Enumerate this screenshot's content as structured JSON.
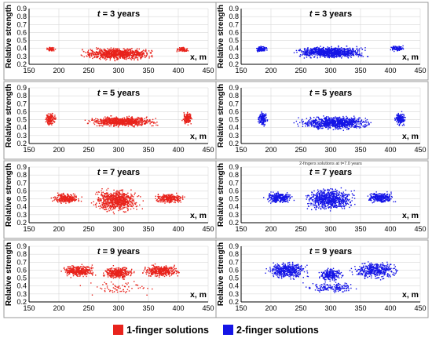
{
  "legend": {
    "one_finger": {
      "label": "1-finger solutions",
      "color": "#e8231c"
    },
    "two_finger": {
      "label": "2-finger solutions",
      "color": "#1515e6"
    }
  },
  "chart_data": [
    {
      "type": "scatter",
      "title_var": "t",
      "title_rest": " = 3 years",
      "ylabel": "Relative strength",
      "xlabel": "x, m",
      "xlim": [
        150,
        450
      ],
      "ylim": [
        0.2,
        0.9
      ],
      "x_ticks": [
        150,
        200,
        250,
        300,
        350,
        400,
        450
      ],
      "y_ticks": [
        0.2,
        0.3,
        0.4,
        0.5,
        0.6,
        0.7,
        0.8,
        0.9
      ],
      "grid": true,
      "series_color": "#e8231c",
      "legend_series": "1-finger solutions",
      "clusters": [
        {
          "x_range": [
            178,
            195
          ],
          "y_range": [
            0.36,
            0.42
          ],
          "n": 80
        },
        {
          "x_range": [
            228,
            368
          ],
          "y_range": [
            0.24,
            0.42
          ],
          "n": 900
        },
        {
          "x_range": [
            395,
            420
          ],
          "y_range": [
            0.35,
            0.42
          ],
          "n": 90
        }
      ]
    },
    {
      "type": "scatter",
      "title_var": "t",
      "title_rest": " = 3 years",
      "ylabel": "Relative strength",
      "xlabel": "x, m",
      "xlim": [
        150,
        450
      ],
      "ylim": [
        0.2,
        0.9
      ],
      "x_ticks": [
        150,
        200,
        250,
        300,
        350,
        400,
        450
      ],
      "y_ticks": [
        0.2,
        0.3,
        0.4,
        0.5,
        0.6,
        0.7,
        0.8,
        0.9
      ],
      "grid": true,
      "series_color": "#1515e6",
      "legend_series": "2-finger solutions",
      "clusters": [
        {
          "x_range": [
            172,
            195
          ],
          "y_range": [
            0.35,
            0.44
          ],
          "n": 110
        },
        {
          "x_range": [
            230,
            370
          ],
          "y_range": [
            0.26,
            0.44
          ],
          "n": 950
        },
        {
          "x_range": [
            398,
            425
          ],
          "y_range": [
            0.36,
            0.44
          ],
          "n": 110
        }
      ]
    },
    {
      "type": "scatter",
      "title_var": "t",
      "title_rest": " = 5 years",
      "ylabel": "Relative strength",
      "xlabel": "x, m",
      "xlim": [
        150,
        450
      ],
      "ylim": [
        0.2,
        0.9
      ],
      "x_ticks": [
        150,
        200,
        250,
        300,
        350,
        400,
        450
      ],
      "y_ticks": [
        0.2,
        0.3,
        0.4,
        0.5,
        0.6,
        0.7,
        0.8,
        0.9
      ],
      "grid": true,
      "series_color": "#e8231c",
      "legend_series": "1-finger solutions",
      "clusters": [
        {
          "x_range": [
            176,
            196
          ],
          "y_range": [
            0.4,
            0.61
          ],
          "n": 150
        },
        {
          "x_range": [
            238,
            378
          ],
          "y_range": [
            0.4,
            0.55
          ],
          "n": 800
        },
        {
          "x_range": [
            405,
            425
          ],
          "y_range": [
            0.42,
            0.61
          ],
          "n": 140
        }
      ]
    },
    {
      "type": "scatter",
      "title_var": "t",
      "title_rest": " = 5 years",
      "ylabel": "Relative strength",
      "xlabel": "x, m",
      "xlim": [
        150,
        450
      ],
      "ylim": [
        0.2,
        0.9
      ],
      "x_ticks": [
        150,
        200,
        250,
        300,
        350,
        400,
        450
      ],
      "y_ticks": [
        0.2,
        0.3,
        0.4,
        0.5,
        0.6,
        0.7,
        0.8,
        0.9
      ],
      "grid": true,
      "series_color": "#1515e6",
      "legend_series": "2-finger solutions",
      "clusters": [
        {
          "x_range": [
            176,
            196
          ],
          "y_range": [
            0.4,
            0.62
          ],
          "n": 160
        },
        {
          "x_range": [
            235,
            380
          ],
          "y_range": [
            0.36,
            0.56
          ],
          "n": 900
        },
        {
          "x_range": [
            405,
            428
          ],
          "y_range": [
            0.4,
            0.62
          ],
          "n": 160
        }
      ]
    },
    {
      "type": "scatter",
      "title_var": "t",
      "title_rest": " = 7 years",
      "ylabel": "Relative strength",
      "xlabel": "x, m",
      "xlim": [
        150,
        450
      ],
      "ylim": [
        0.2,
        0.9
      ],
      "x_ticks": [
        150,
        200,
        250,
        300,
        350,
        400,
        450
      ],
      "y_ticks": [
        0.2,
        0.3,
        0.4,
        0.5,
        0.6,
        0.7,
        0.8,
        0.9
      ],
      "grid": true,
      "series_color": "#e8231c",
      "legend_series": "1-finger solutions",
      "clusters": [
        {
          "x_range": [
            185,
            240
          ],
          "y_range": [
            0.43,
            0.58
          ],
          "n": 260
        },
        {
          "x_range": [
            250,
            345
          ],
          "y_range": [
            0.3,
            0.65
          ],
          "n": 700
        },
        {
          "x_range": [
            355,
            415
          ],
          "y_range": [
            0.43,
            0.58
          ],
          "n": 260
        }
      ]
    },
    {
      "type": "scatter",
      "title_var": "t",
      "title_rest": " = 7 years",
      "ylabel": "Relative strength",
      "xlabel": "x, m",
      "xlim": [
        150,
        450
      ],
      "ylim": [
        0.2,
        0.9
      ],
      "x_ticks": [
        150,
        200,
        250,
        300,
        350,
        400,
        450
      ],
      "y_ticks": [
        0.2,
        0.3,
        0.4,
        0.5,
        0.6,
        0.7,
        0.8,
        0.9
      ],
      "grid": true,
      "series_color": "#1515e6",
      "legend_series": "2-finger solutions",
      "subtitle": "2-fingers solutions at t=7.0 years",
      "clusters": [
        {
          "x_range": [
            185,
            242
          ],
          "y_range": [
            0.43,
            0.6
          ],
          "n": 280
        },
        {
          "x_range": [
            250,
            348
          ],
          "y_range": [
            0.33,
            0.66
          ],
          "n": 720
        },
        {
          "x_range": [
            355,
            412
          ],
          "y_range": [
            0.43,
            0.6
          ],
          "n": 280
        }
      ]
    },
    {
      "type": "scatter",
      "title_var": "t",
      "title_rest": " = 9 years",
      "ylabel": "Relative strength",
      "xlabel": "x, m",
      "xlim": [
        150,
        450
      ],
      "ylim": [
        0.2,
        0.9
      ],
      "x_ticks": [
        150,
        200,
        250,
        300,
        350,
        400,
        450
      ],
      "y_ticks": [
        0.2,
        0.3,
        0.4,
        0.5,
        0.6,
        0.7,
        0.8,
        0.9
      ],
      "grid": true,
      "series_color": "#e8231c",
      "legend_series": "1-finger solutions",
      "clusters": [
        {
          "x_range": [
            200,
            265
          ],
          "y_range": [
            0.5,
            0.68
          ],
          "n": 380
        },
        {
          "x_range": [
            270,
            330
          ],
          "y_range": [
            0.47,
            0.66
          ],
          "n": 350
        },
        {
          "x_range": [
            335,
            410
          ],
          "y_range": [
            0.5,
            0.68
          ],
          "n": 380
        },
        {
          "x_range": [
            230,
            370
          ],
          "y_range": [
            0.25,
            0.5
          ],
          "n": 70
        }
      ]
    },
    {
      "type": "scatter",
      "title_var": "t",
      "title_rest": " = 9 years",
      "ylabel": "Relative strength",
      "xlabel": "x, m",
      "xlim": [
        150,
        450
      ],
      "ylim": [
        0.2,
        0.9
      ],
      "x_ticks": [
        150,
        200,
        250,
        300,
        350,
        400,
        450
      ],
      "y_ticks": [
        0.2,
        0.3,
        0.4,
        0.5,
        0.6,
        0.7,
        0.8,
        0.9
      ],
      "grid": true,
      "series_color": "#1515e6",
      "legend_series": "2-finger solutions",
      "clusters": [
        {
          "x_range": [
            185,
            270
          ],
          "y_range": [
            0.47,
            0.72
          ],
          "n": 420
        },
        {
          "x_range": [
            275,
            325
          ],
          "y_range": [
            0.45,
            0.64
          ],
          "n": 250
        },
        {
          "x_range": [
            330,
            420
          ],
          "y_range": [
            0.47,
            0.72
          ],
          "n": 420
        },
        {
          "x_range": [
            245,
            360
          ],
          "y_range": [
            0.3,
            0.47
          ],
          "n": 160
        }
      ]
    }
  ]
}
